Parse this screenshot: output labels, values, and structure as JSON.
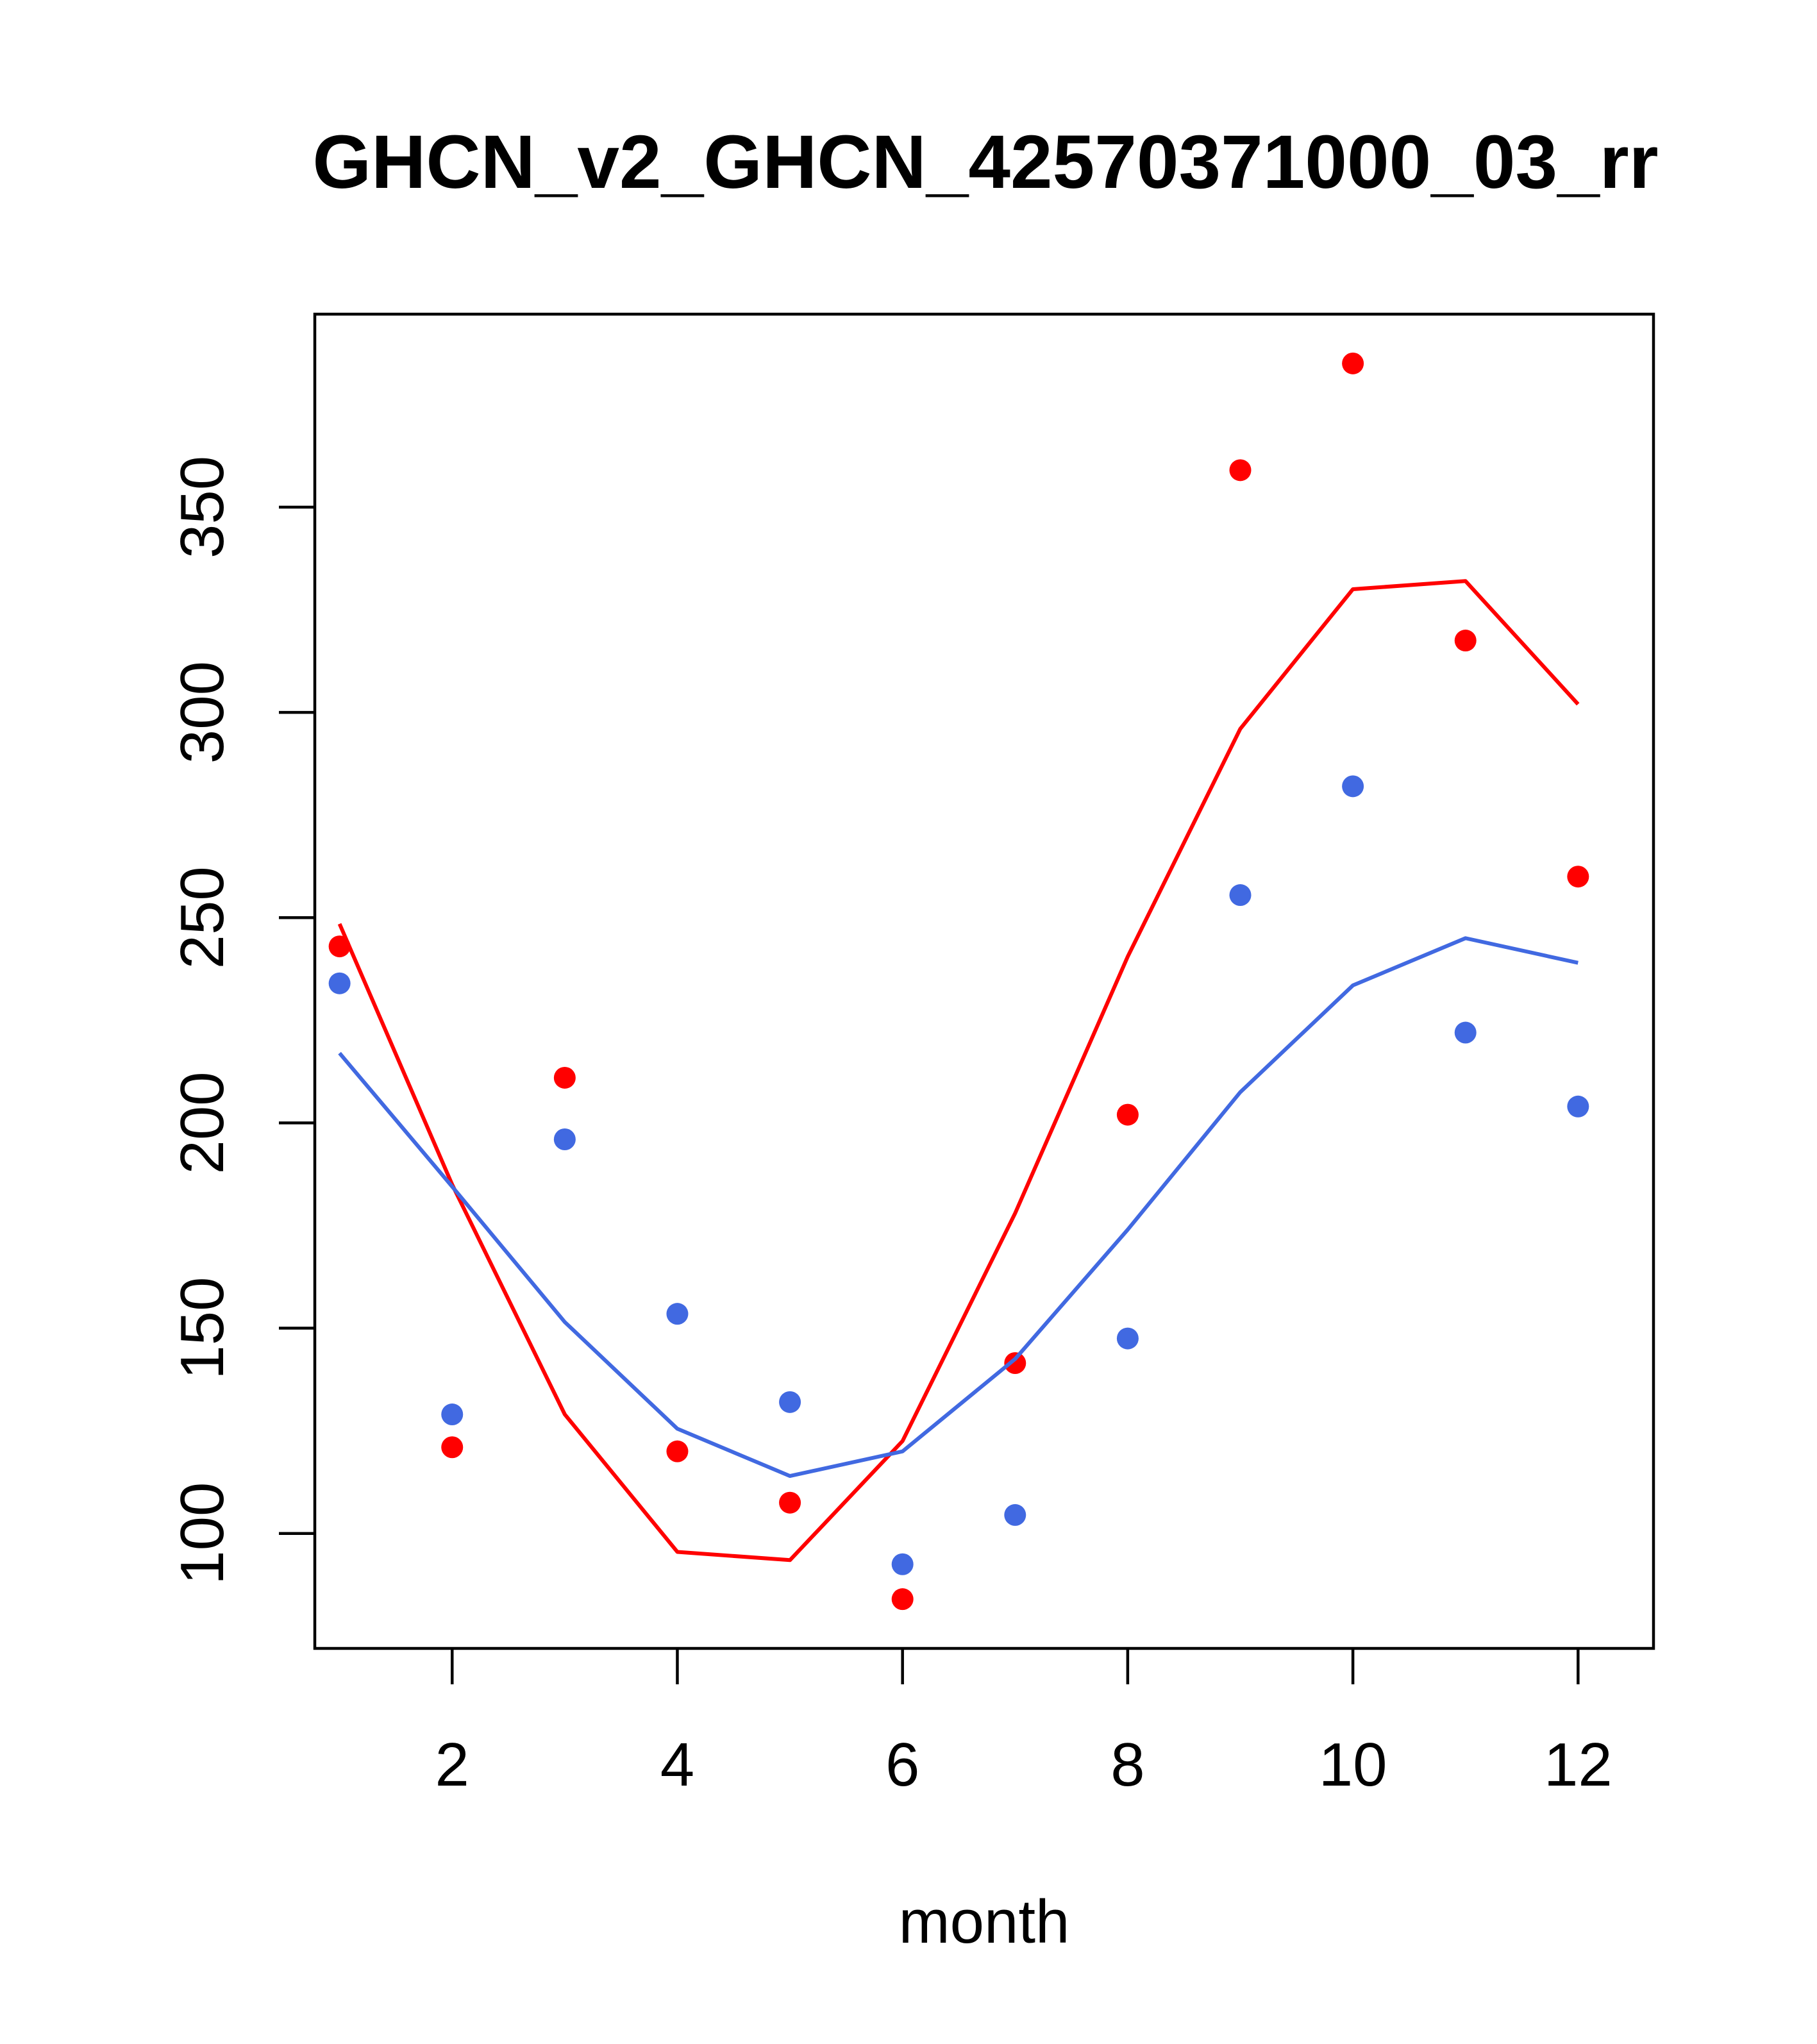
{
  "chart_data": {
    "type": "scatter",
    "title": "GHCN_v2_GHCN_42570371000_03_rr",
    "xlabel": "month",
    "ylabel": "",
    "xlim": [
      0.78,
      12.67
    ],
    "ylim": [
      72,
      397
    ],
    "x_ticks": [
      2,
      4,
      6,
      8,
      10,
      12
    ],
    "y_ticks": [
      100,
      150,
      200,
      250,
      300,
      350
    ],
    "grid": false,
    "legend": "none",
    "x": [
      1,
      2,
      3,
      4,
      5,
      6,
      7,
      8,
      9,
      10,
      11,
      12
    ],
    "series": [
      {
        "color": "#FF0000",
        "points": [
          243,
          121,
          211,
          120,
          107.5,
          84,
          141.5,
          202,
          359,
          385,
          317.5,
          260
        ],
        "line": [
          248.5,
          185,
          129,
          95.5,
          93.5,
          122.5,
          178,
          240.5,
          296,
          330,
          332,
          302
        ]
      },
      {
        "color": "#4169E1",
        "points": [
          234,
          129,
          196,
          153.5,
          132,
          92.5,
          104.5,
          147.5,
          255.5,
          282,
          222,
          204
        ],
        "line": [
          217,
          184.5,
          151.5,
          125.5,
          114,
          120,
          142.5,
          174,
          207.5,
          233.5,
          245,
          239
        ]
      }
    ]
  }
}
